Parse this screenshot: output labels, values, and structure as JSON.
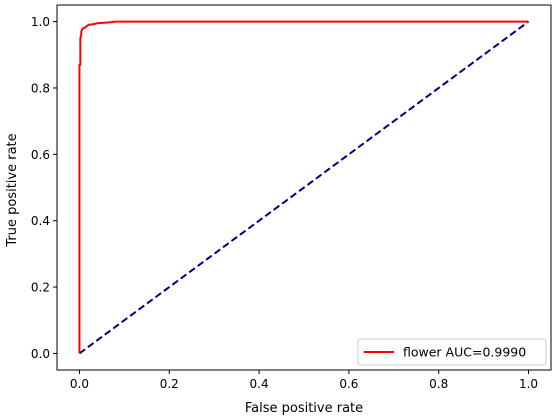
{
  "chart_data": {
    "type": "line",
    "title": "",
    "xlabel": "False positive rate",
    "ylabel": "True positive rate",
    "xlim": [
      -0.05,
      1.05
    ],
    "ylim": [
      -0.05,
      1.05
    ],
    "x_ticks": [
      "0.0",
      "0.2",
      "0.4",
      "0.6",
      "0.8",
      "1.0"
    ],
    "y_ticks": [
      "0.0",
      "0.2",
      "0.4",
      "0.6",
      "0.8",
      "1.0"
    ],
    "grid": false,
    "legend_position": "bottom-right",
    "series": [
      {
        "name": "flower AUC=0.9990",
        "color": "#ff0000",
        "style": "solid",
        "x": [
          0.0,
          0.0,
          0.002,
          0.002,
          0.004,
          0.004,
          0.008,
          0.01,
          0.015,
          0.02,
          0.03,
          0.04,
          0.05,
          0.06,
          0.07,
          0.08,
          1.0
        ],
        "y": [
          0.0,
          0.87,
          0.87,
          0.95,
          0.96,
          0.97,
          0.98,
          0.98,
          0.985,
          0.99,
          0.992,
          0.995,
          0.996,
          0.997,
          0.998,
          1.0,
          1.0
        ]
      },
      {
        "name": "",
        "color": "#000080",
        "style": "dashed",
        "x": [
          0.0,
          1.0
        ],
        "y": [
          0.0,
          1.0
        ]
      }
    ]
  },
  "legend": {
    "label": "flower AUC=0.9990"
  }
}
